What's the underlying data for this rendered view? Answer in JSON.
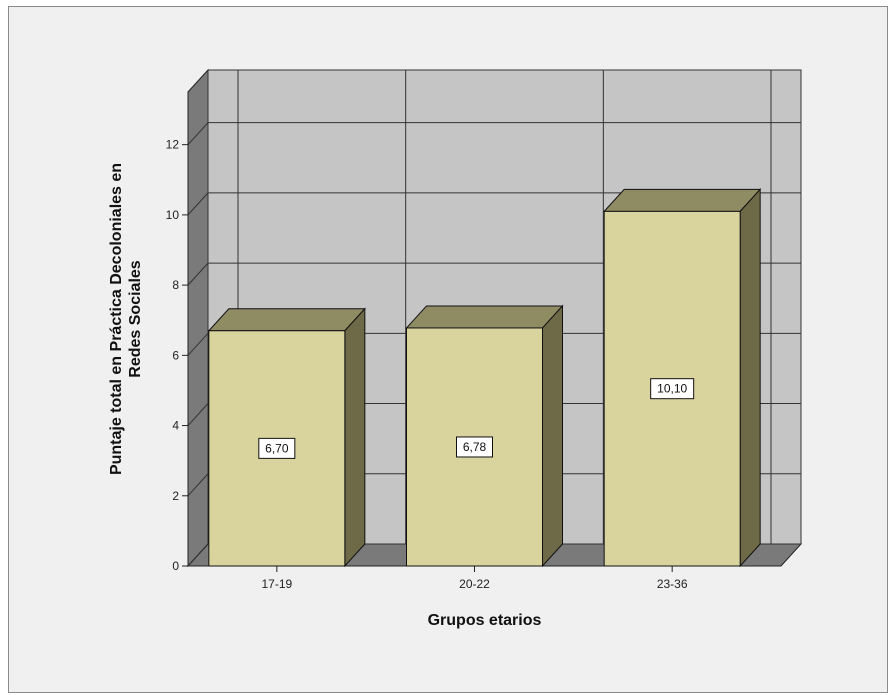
{
  "chart_data": {
    "type": "bar",
    "categories": [
      "17-19",
      "20-22",
      "23-36"
    ],
    "values": [
      6.7,
      6.78,
      10.1
    ],
    "data_labels": [
      "6,70",
      "6,78",
      "10,10"
    ],
    "xlabel": "Grupos etarios",
    "ylabel_lines": [
      "Puntaje total en Práctica Decoloniales en",
      "Redes Sociales"
    ],
    "ylim": [
      0,
      13.5
    ],
    "yticks": [
      "0",
      "2",
      "4",
      "6",
      "8",
      "10",
      "12"
    ],
    "grid": true,
    "legend": "none",
    "style": "3d",
    "colors": {
      "bar_front": "#d9d49e",
      "bar_top": "#8f8b63",
      "bar_side": "#6e6a47",
      "plot_back": "#c5c5c5",
      "plot_side": "#7a7a7a",
      "floor": "#7a7a7a"
    }
  }
}
